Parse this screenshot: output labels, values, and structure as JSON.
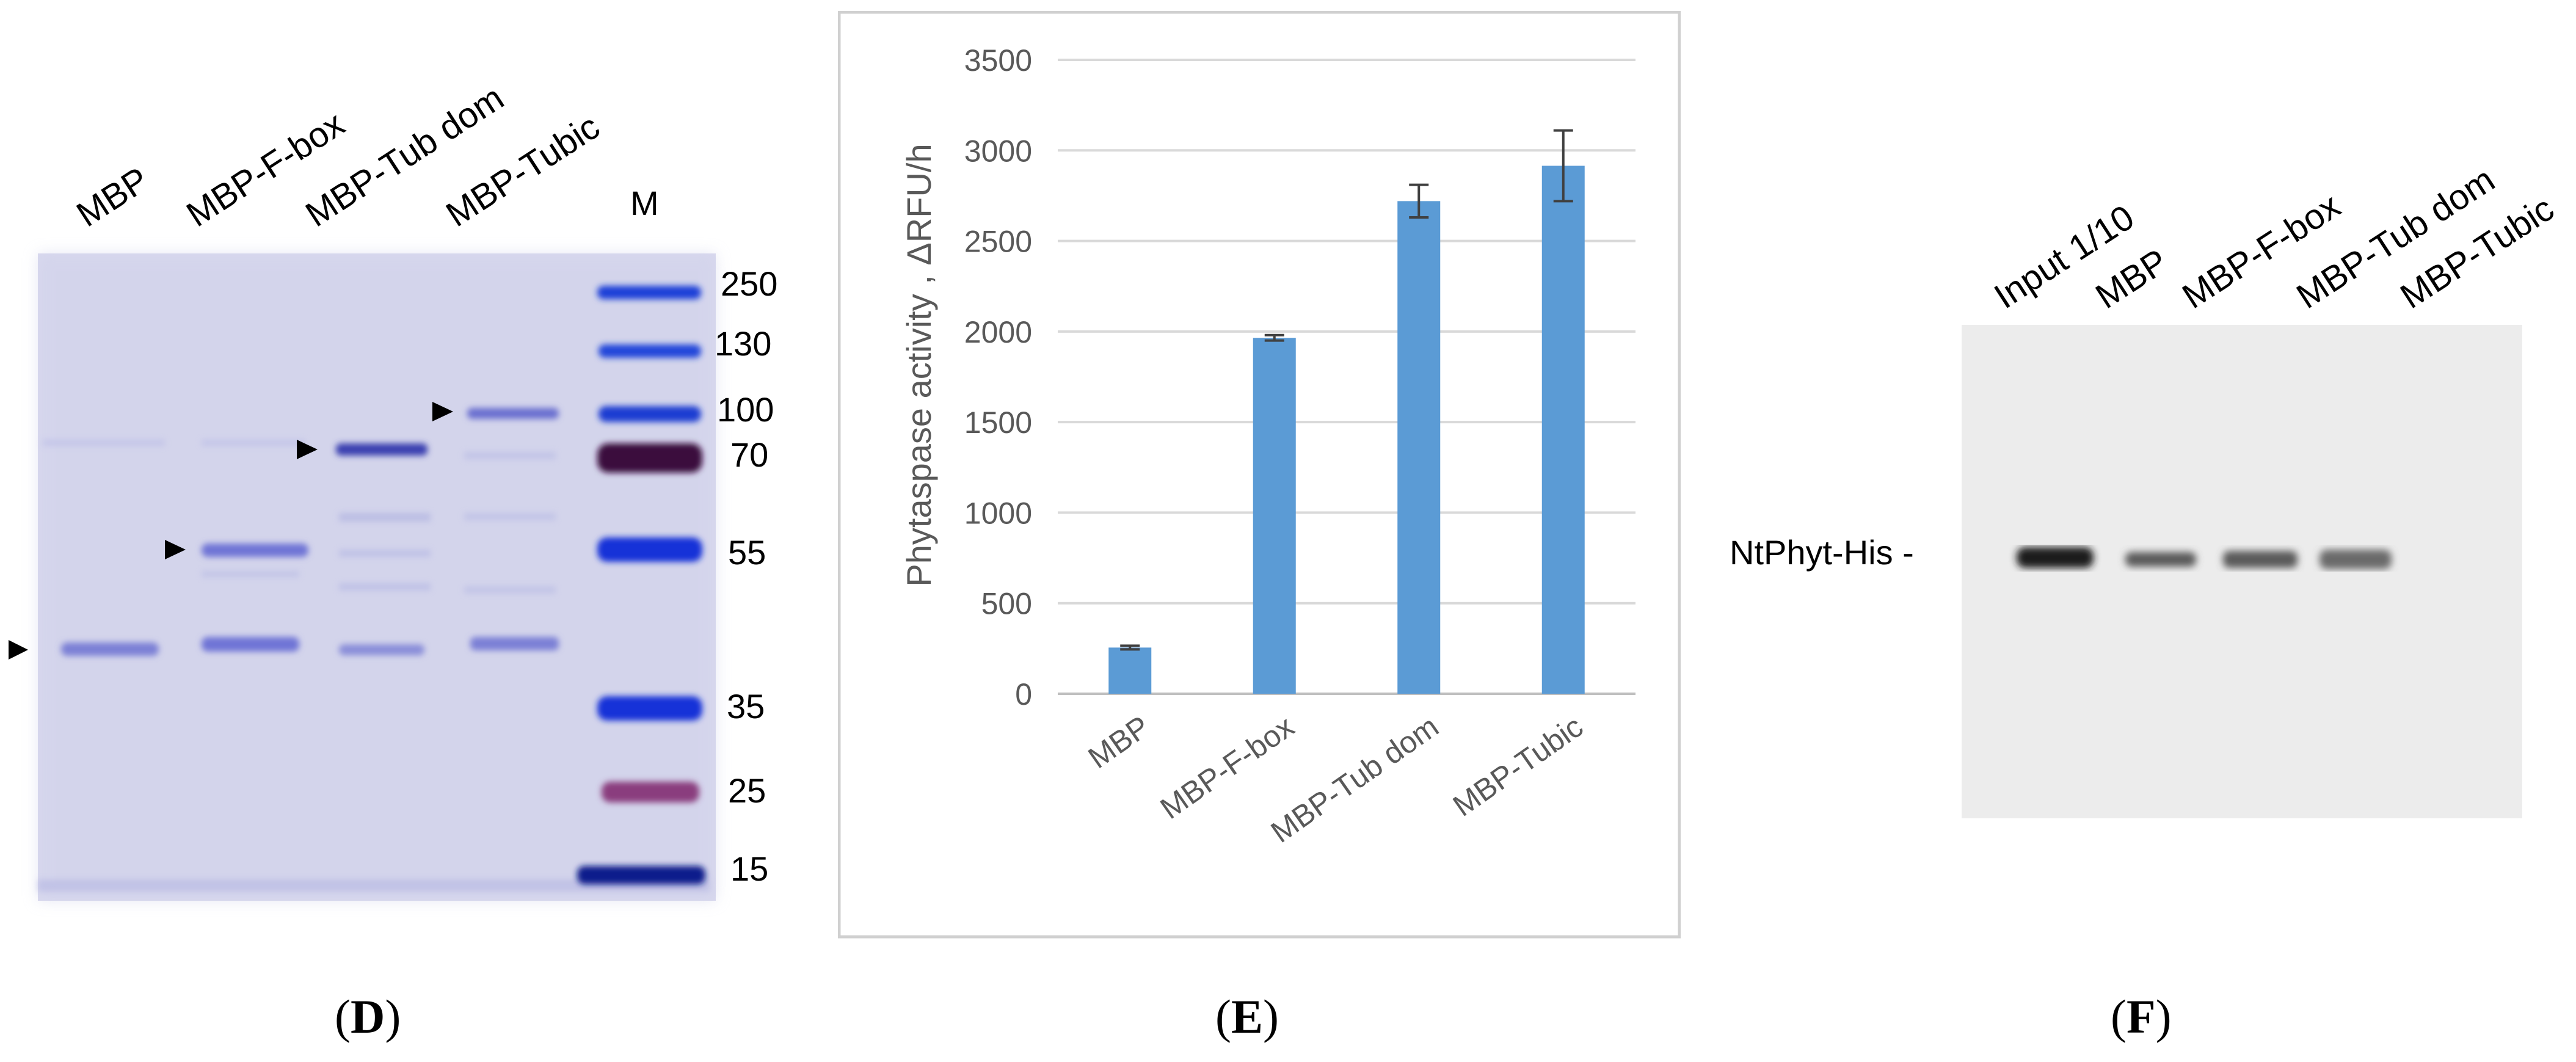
{
  "panel_d": {
    "lanes": [
      "MBP",
      "MBP-F-box",
      "MBP-Tub dom",
      "MBP-Tubic",
      "M"
    ],
    "marker_sizes": [
      "250",
      "130",
      "100",
      "70",
      "55",
      "35",
      "25",
      "15"
    ],
    "tag": {
      "open": "(",
      "letter": "D",
      "close": ")"
    }
  },
  "panel_e": {
    "tag": {
      "open": "(",
      "letter": "E",
      "close": ")"
    }
  },
  "panel_f": {
    "lanes": [
      "Input 1/10",
      "MBP",
      "MBP-F-box",
      "MBP-Tub dom",
      "MBP-Tubic"
    ],
    "band_label": "NtPhyt-His -",
    "tag": {
      "open": "(",
      "letter": "F",
      "close": ")"
    }
  },
  "colors": {
    "bar": "#5b9bd5",
    "grid": "#d9d9d9",
    "axis_text": "#595959",
    "gel_bg": "#d8d8ec",
    "marker_blue": "#1b3fd6",
    "blot_bg": "#eeeeee"
  },
  "chart_data": {
    "type": "bar",
    "categories": [
      "MBP",
      "MBP-F-box",
      "MBP-Tub dom",
      "MBP-Tubic"
    ],
    "values": [
      255,
      1965,
      2720,
      2915
    ],
    "errors": [
      10,
      15,
      90,
      195
    ],
    "ylabel": "Phytaspase activity , ΔRFU/h",
    "ylim": [
      0,
      3500
    ],
    "yticks": [
      "0",
      "500",
      "1000",
      "1500",
      "2000",
      "2500",
      "3000",
      "3500"
    ],
    "grid": true
  }
}
